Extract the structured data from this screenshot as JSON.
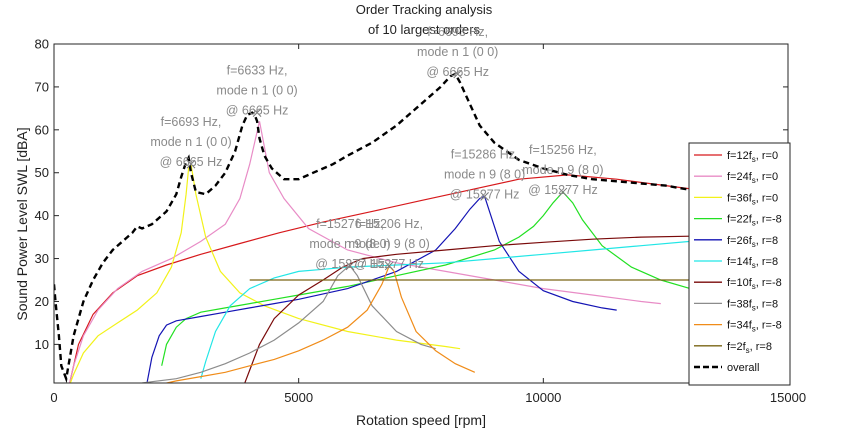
{
  "chart_data": {
    "type": "line",
    "title": [
      "Order Tracking analysis",
      "of 10 largest orders"
    ],
    "xlabel": "Rotation speed [rpm]",
    "ylabel": "Sound Power Level SWL [dBA]",
    "xlim": [
      0,
      15000
    ],
    "ylim": [
      1,
      80
    ],
    "xticks": [
      0,
      5000,
      10000,
      15000
    ],
    "yticks": [
      10,
      20,
      30,
      40,
      50,
      60,
      70,
      80
    ],
    "grid": false,
    "legend_position": "right",
    "colors": {
      "s0": "#d7191c",
      "s1": "#e88cc6",
      "s2": "#f2f21a",
      "s3": "#22e022",
      "s4": "#1414b4",
      "s5": "#22e6e6",
      "s6": "#7a0a0a",
      "s7": "#8c8c8c",
      "s8": "#f08c19",
      "s9": "#7a6414",
      "overall": "#000000"
    },
    "legend": [
      {
        "pre": "f=12f",
        "sub": "s",
        "post": ", r=0"
      },
      {
        "pre": "f=24f",
        "sub": "s",
        "post": ", r=0"
      },
      {
        "pre": "f=36f",
        "sub": "s",
        "post": ", r=0"
      },
      {
        "pre": "f=22f",
        "sub": "s",
        "post": ", r=-8"
      },
      {
        "pre": "f=26f",
        "sub": "s",
        "post": ", r=8"
      },
      {
        "pre": "f=14f",
        "sub": "s",
        "post": ", r=8"
      },
      {
        "pre": "f=10f",
        "sub": "s",
        "post": ", r=-8"
      },
      {
        "pre": "f=38f",
        "sub": "s",
        "post": ", r=8"
      },
      {
        "pre": "f=34f",
        "sub": "s",
        "post": ", r=-8"
      },
      {
        "pre": "f=2f",
        "sub": "s",
        "post": ", r=8"
      },
      {
        "pre": "overall",
        "sub": "",
        "post": ""
      }
    ],
    "series": [
      {
        "x": [
          300,
          500,
          800,
          1200,
          1700,
          2300,
          3000,
          3800,
          4600,
          5500,
          6500,
          7500,
          8500,
          9500,
          10500,
          11500,
          12500,
          13500,
          14500,
          15000
        ],
        "y": [
          0,
          10,
          17,
          22,
          26,
          28.5,
          31,
          33.5,
          36,
          38.5,
          41,
          43.5,
          46,
          48.5,
          49.5,
          48.5,
          47,
          45.5,
          44,
          43
        ]
      },
      {
        "x": [
          300,
          400,
          600,
          900,
          1300,
          1800,
          2400,
          3000,
          3500,
          3800,
          4000,
          4100,
          4200,
          4400,
          4700,
          5200,
          6000,
          7000,
          8000,
          9000,
          10000,
          11000,
          12000,
          12400
        ],
        "y": [
          0,
          5,
          12,
          18,
          23,
          27,
          30,
          34,
          38,
          44,
          52,
          57,
          62,
          50,
          44,
          37,
          32,
          29,
          27,
          25,
          23,
          21.5,
          20,
          19.5
        ]
      },
      {
        "x": [
          300,
          400,
          600,
          900,
          1300,
          1700,
          2100,
          2400,
          2600,
          2700,
          2750,
          2800,
          2900,
          3100,
          3400,
          3800,
          4300,
          5000,
          6000,
          7000,
          8000,
          8300
        ],
        "y": [
          0,
          3,
          8,
          12,
          15,
          18,
          22,
          28,
          36,
          45,
          51,
          52,
          45,
          35,
          27,
          22,
          19,
          16,
          13,
          11,
          9.5,
          9
        ]
      },
      {
        "x": [
          2200,
          2300,
          2500,
          2700,
          3000,
          3500,
          4000,
          4500,
          5000,
          6000,
          7000,
          8000,
          9000,
          9500,
          9800,
          10000,
          10200,
          10400,
          10600,
          10800,
          11200,
          11800,
          12400,
          13000,
          13600
        ],
        "y": [
          5,
          10,
          14,
          16,
          17.5,
          18.5,
          19.5,
          20.5,
          21.5,
          23.5,
          26,
          28.5,
          32,
          35,
          37.5,
          40,
          43,
          45.5,
          43,
          39,
          33,
          28,
          25,
          23,
          21.5
        ]
      },
      {
        "x": [
          1900,
          2000,
          2150,
          2300,
          2500,
          3000,
          3500,
          4000,
          4500,
          5000,
          6000,
          7000,
          7800,
          8200,
          8500,
          8700,
          8800,
          8900,
          9100,
          9500,
          10000,
          10600,
          11200,
          11500
        ],
        "y": [
          1,
          7,
          12,
          14.5,
          15.5,
          16.5,
          17.5,
          18.5,
          19.5,
          20.5,
          23,
          27,
          32,
          37,
          41.5,
          44,
          44.5,
          41,
          34,
          27,
          22.5,
          20,
          18.5,
          18
        ]
      },
      {
        "x": [
          3000,
          3100,
          3300,
          3600,
          4000,
          4500,
          5000,
          5500,
          6000,
          7000,
          8000,
          9000,
          10000,
          11000,
          12000,
          13000,
          14000,
          15000
        ],
        "y": [
          2,
          6,
          13,
          19,
          23,
          25.5,
          27,
          27.5,
          28,
          28.5,
          29,
          30,
          31,
          32,
          33,
          34,
          35,
          36.5
        ]
      },
      {
        "x": [
          3900,
          4000,
          4200,
          4500,
          5000,
          5500,
          5900,
          6000,
          6100,
          6300,
          7000,
          8000,
          9000,
          10000,
          11000,
          12000,
          13000,
          14000,
          15000
        ],
        "y": [
          1,
          4,
          10,
          16,
          21.5,
          25,
          28,
          28.5,
          29,
          30,
          31,
          32,
          33,
          33.8,
          34.5,
          35,
          35.2,
          35.5,
          35.8
        ]
      },
      {
        "x": [
          1800,
          2000,
          2500,
          3000,
          3500,
          4000,
          4500,
          5000,
          5500,
          5800,
          6000,
          6050,
          6200,
          6500,
          7000,
          7500,
          7800
        ],
        "y": [
          1,
          1.3,
          2,
          3.5,
          5.5,
          8,
          11,
          15,
          20,
          26,
          28,
          28.3,
          26,
          19,
          13,
          10,
          9
        ]
      },
      {
        "x": [
          2100,
          2500,
          3000,
          3500,
          4000,
          4500,
          5000,
          5500,
          6000,
          6400,
          6700,
          6850,
          6950,
          7100,
          7400,
          7800,
          8200,
          8600
        ],
        "y": [
          0.5,
          1.5,
          2.5,
          3.5,
          5,
          6.5,
          8.5,
          11,
          14,
          18,
          24,
          28.3,
          27,
          21,
          13,
          8.5,
          5.5,
          3.5
        ]
      },
      {
        "x": [
          4000,
          15000
        ],
        "y": [
          25,
          25
        ]
      }
    ],
    "overall": {
      "x": [
        0,
        30,
        100,
        150,
        250,
        400,
        600,
        800,
        1000,
        1200,
        1400,
        1600,
        1700,
        1800,
        2000,
        2300,
        2500,
        2600,
        2700,
        2750,
        2800,
        2900,
        3100,
        3300,
        3500,
        3700,
        3850,
        3950,
        4050,
        4100,
        4150,
        4200,
        4300,
        4450,
        4700,
        5000,
        5300,
        5700,
        6000,
        6500,
        7000,
        7500,
        7900,
        8100,
        8200,
        8300,
        8500,
        8700,
        9000,
        9500,
        10000,
        10500,
        11000,
        11500,
        12000,
        12500,
        13000,
        13500,
        14000,
        14500,
        15000
      ],
      "y": [
        24,
        20,
        12,
        5,
        2,
        12,
        20,
        25,
        29,
        32,
        34,
        36,
        37.5,
        37,
        38,
        41,
        45,
        49,
        52.5,
        53.5,
        50,
        45.5,
        45,
        47,
        50,
        55,
        61,
        63.5,
        64,
        63.5,
        62,
        58,
        54,
        51,
        48.5,
        48.5,
        50,
        52,
        54,
        57,
        61,
        66,
        70,
        72.5,
        73,
        71,
        66,
        61,
        57,
        53,
        51,
        49.5,
        48.5,
        48,
        47.5,
        47,
        46,
        45.5,
        45,
        44.5,
        44
      ]
    },
    "annotations": [
      {
        "lines": [
          "f=6693 Hz,",
          "mode n  1 (0  0)",
          "@ 6665 Hz"
        ],
        "x": 2800,
        "y": 52
      },
      {
        "lines": [
          "f=6633 Hz,",
          "mode n  1 (0  0)",
          "@ 6665 Hz"
        ],
        "x": 4150,
        "y": 64
      },
      {
        "lines": [
          "f=6693 Hz,",
          "mode n  1 (0  0)",
          "@ 6665 Hz"
        ],
        "x": 8250,
        "y": 73
      },
      {
        "lines": [
          "f=15286 Hz,",
          "mode n  9 (8  0)",
          "@ 15277 Hz"
        ],
        "x": 8800,
        "y": 44.5
      },
      {
        "lines": [
          "f=15256 Hz,",
          "mode n  9 (8  0)",
          "@ 15277 Hz"
        ],
        "x": 10400,
        "y": 45.5
      },
      {
        "lines": [
          "f=15276 Hz,",
          "mode n  9 (8  0)",
          "@ 15277 Hz"
        ],
        "x": 6050,
        "y": 28.3
      },
      {
        "lines": [
          "f=15206 Hz,",
          "mode n  9 (8  0)",
          "@ 15277 Hz"
        ],
        "x": 6850,
        "y": 28.3
      }
    ]
  }
}
